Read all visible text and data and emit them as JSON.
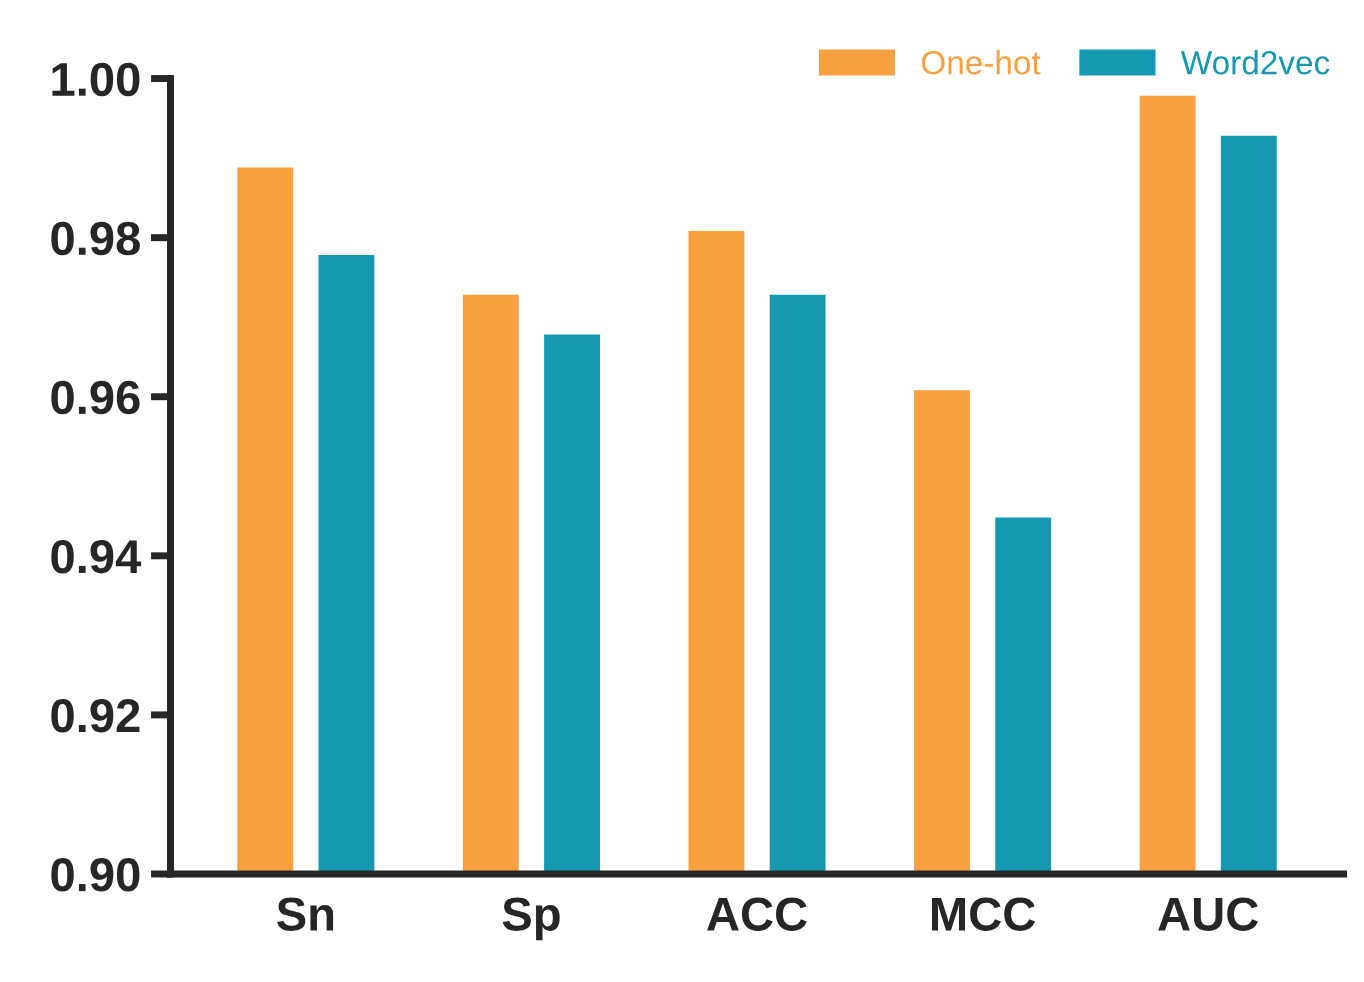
{
  "chart_data": {
    "type": "bar",
    "categories": [
      "Sn",
      "Sp",
      "ACC",
      "MCC",
      "AUC"
    ],
    "series": [
      {
        "name": "One-hot",
        "color": "#f9a040",
        "values": [
          0.989,
          0.973,
          0.981,
          0.961,
          0.998
        ]
      },
      {
        "name": "Word2vec",
        "color": "#1699b0",
        "values": [
          0.978,
          0.968,
          0.973,
          0.945,
          0.993
        ]
      }
    ],
    "ylim": [
      0.9,
      1.0
    ],
    "yticks": [
      {
        "value": 0.9,
        "label": "0.90"
      },
      {
        "value": 0.92,
        "label": "0.92"
      },
      {
        "value": 0.94,
        "label": "0.94"
      },
      {
        "value": 0.96,
        "label": "0.96"
      },
      {
        "value": 0.98,
        "label": "0.98"
      },
      {
        "value": 1.0,
        "label": "1.00"
      }
    ],
    "grid": false,
    "legend": "top right"
  }
}
